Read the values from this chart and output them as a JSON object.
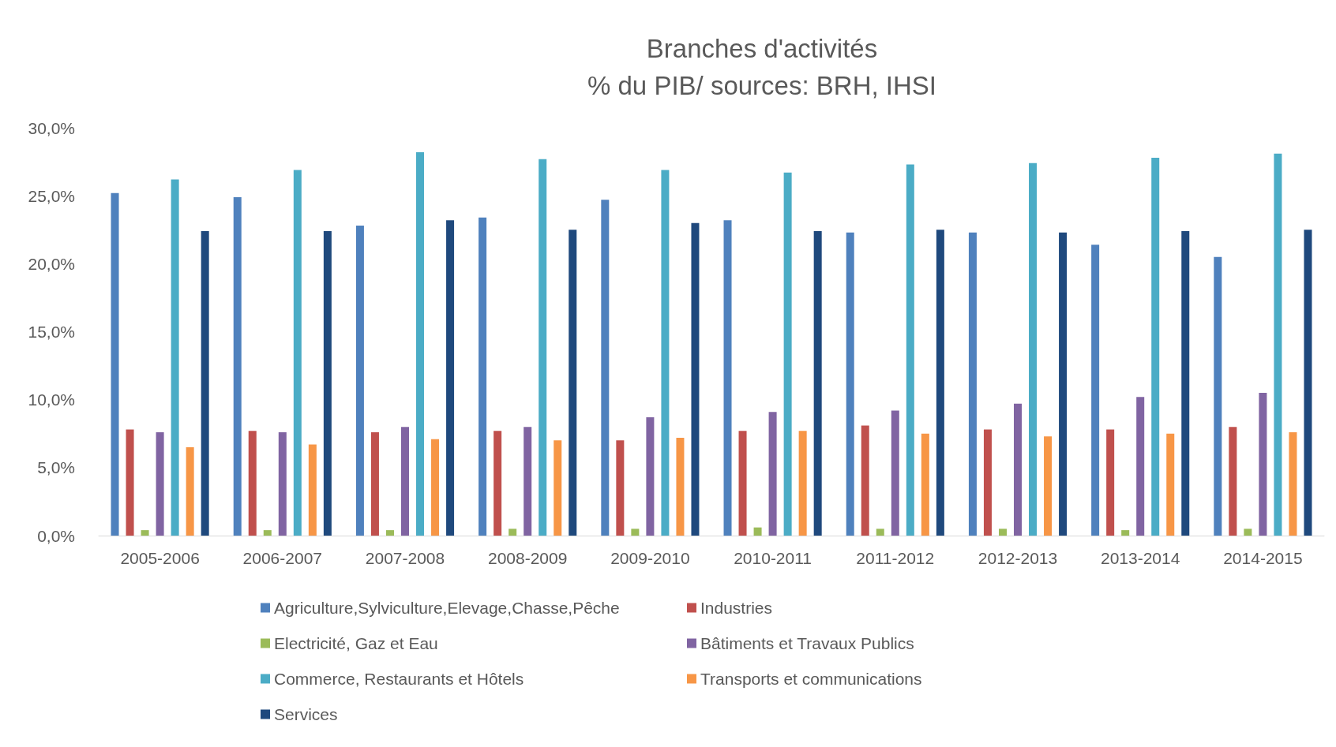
{
  "chart_data": {
    "type": "bar",
    "title": "Branches d'activités",
    "subtitle": "% du PIB/ sources: BRH, IHSI",
    "categories": [
      "2005-2006",
      "2006-2007",
      "2007-2008",
      "2008-2009",
      "2009-2010",
      "2010-2011",
      "2011-2012",
      "2012-2013",
      "2013-2014",
      "2014-2015"
    ],
    "series": [
      {
        "name": "Agriculture,Sylviculture,Elevage,Chasse,Pêche",
        "color": "#4f81bd",
        "values": [
          25.2,
          24.9,
          22.8,
          23.4,
          24.7,
          23.2,
          22.3,
          22.3,
          21.4,
          20.5
        ]
      },
      {
        "name": "Industries",
        "color": "#c0504d",
        "values": [
          7.8,
          7.7,
          7.6,
          7.7,
          7.0,
          7.7,
          8.1,
          7.8,
          7.8,
          8.0
        ]
      },
      {
        "name": "Electricité, Gaz et Eau",
        "color": "#9bbb59",
        "values": [
          0.4,
          0.4,
          0.4,
          0.5,
          0.5,
          0.6,
          0.5,
          0.5,
          0.4,
          0.5
        ]
      },
      {
        "name": "Bâtiments et Travaux Publics",
        "color": "#8064a2",
        "values": [
          7.6,
          7.6,
          8.0,
          8.0,
          8.7,
          9.1,
          9.2,
          9.7,
          10.2,
          10.5
        ]
      },
      {
        "name": "Commerce, Restaurants et Hôtels",
        "color": "#4bacc6",
        "values": [
          26.2,
          26.9,
          28.2,
          27.7,
          26.9,
          26.7,
          27.3,
          27.4,
          27.8,
          28.1
        ]
      },
      {
        "name": "Transports et communications",
        "color": "#f79646",
        "values": [
          6.5,
          6.7,
          7.1,
          7.0,
          7.2,
          7.7,
          7.5,
          7.3,
          7.5,
          7.6
        ]
      },
      {
        "name": "Services",
        "color": "#1f497d",
        "values": [
          22.4,
          22.4,
          23.2,
          22.5,
          23.0,
          22.4,
          22.5,
          22.3,
          22.4,
          22.5
        ]
      }
    ],
    "ylim": [
      0,
      30
    ],
    "yticks": [
      {
        "value": 0,
        "label": "0,0%"
      },
      {
        "value": 5,
        "label": "5,0%"
      },
      {
        "value": 10,
        "label": "10,0%"
      },
      {
        "value": 15,
        "label": "15,0%"
      },
      {
        "value": 20,
        "label": "20,0%"
      },
      {
        "value": 25,
        "label": "25,0%"
      },
      {
        "value": 30,
        "label": "30,0%"
      }
    ],
    "grid": false,
    "legend": "bottom"
  }
}
